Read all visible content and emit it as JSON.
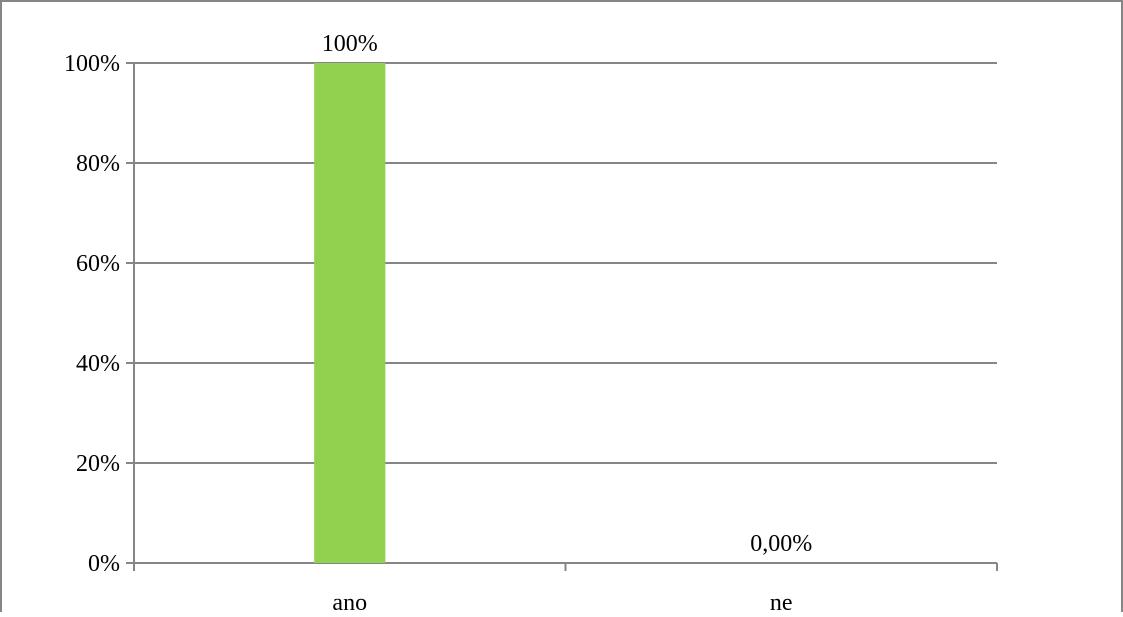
{
  "chart_data": {
    "type": "bar",
    "title": "",
    "xlabel": "",
    "ylabel": "",
    "categories": [
      "ano",
      "ne"
    ],
    "values": [
      100,
      0
    ],
    "data_labels": [
      "100%",
      "0,00%"
    ],
    "ylim": [
      0,
      100
    ],
    "yticks": [
      0,
      20,
      40,
      60,
      80,
      100
    ],
    "ytick_labels": [
      "0%",
      "20%",
      "40%",
      "60%",
      "80%",
      "100%"
    ],
    "grid": true,
    "legend": "none",
    "colors": {
      "bar": "#92d050",
      "grid": "#868686",
      "border": "#868686"
    }
  }
}
